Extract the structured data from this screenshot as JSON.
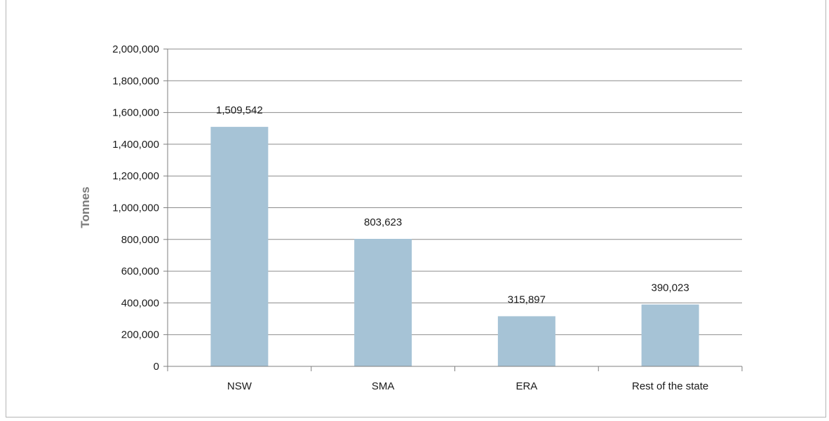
{
  "chart_data": {
    "type": "bar",
    "categories": [
      "NSW",
      "SMA",
      "ERA",
      "Rest of the state"
    ],
    "values": [
      1509542,
      803623,
      315897,
      390023
    ],
    "value_labels": [
      "1,509,542",
      "803,623",
      "315,897",
      "390,023"
    ],
    "ylabel": "Tonnes",
    "ylim": [
      0,
      2000000
    ],
    "yticks": [
      0,
      200000,
      400000,
      600000,
      800000,
      1000000,
      1200000,
      1400000,
      1600000,
      1800000,
      2000000
    ],
    "ytick_labels": [
      "0",
      "200,000",
      "400,000",
      "600,000",
      "800,000",
      "1,000,000",
      "1,200,000",
      "1,400,000",
      "1,600,000",
      "1,800,000",
      "2,000,000"
    ],
    "grid": true,
    "colors": {
      "bar": "#a6c3d6",
      "grid": "#8c8c8c",
      "axis": "#7f7f7f"
    }
  }
}
